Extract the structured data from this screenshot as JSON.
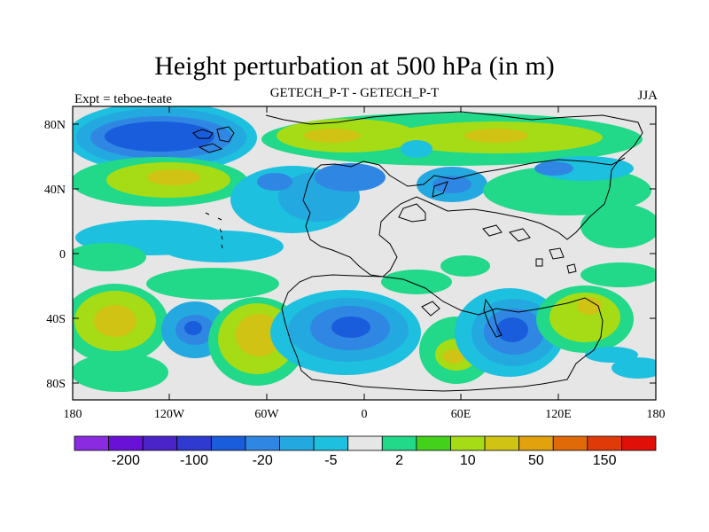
{
  "title": "Height perturbation at 500 hPa (in m)",
  "subtitle_left": "Expt = teboe-teate",
  "subtitle_center": "GETECH_P-T - GETECH_P-T",
  "subtitle_right": "JJA",
  "lat_labels": [
    "80N",
    "40N",
    "0",
    "40S",
    "80S"
  ],
  "lon_labels": [
    "180",
    "120W",
    "60W",
    "0",
    "60E",
    "120E",
    "180"
  ],
  "colorbar": {
    "colors": [
      "#8a2be2",
      "#6a11d8",
      "#4a23c9",
      "#2e3ad0",
      "#1a5ddc",
      "#2f86e3",
      "#24a8e0",
      "#1ec0df",
      "#e6e6e6",
      "#22d889",
      "#44d11c",
      "#a6dc15",
      "#d0c313",
      "#e2a20e",
      "#e06a08",
      "#e03a08",
      "#e00f08"
    ],
    "labels": [
      "-200",
      "-100",
      "-20",
      "-5",
      "2",
      "10",
      "50",
      "150"
    ]
  },
  "palette": {
    "gray": "#e6e6e6",
    "green": "#22d889",
    "yellowgreen": "#a6dc15",
    "yellow": "#d0c313",
    "orange": "#e2a20e",
    "lightblue": "#1ec0df",
    "blue": "#24a8e0",
    "medblue": "#2f86e3",
    "darkblue": "#1a5ddc",
    "deepblue": "#2e3ad0"
  }
}
